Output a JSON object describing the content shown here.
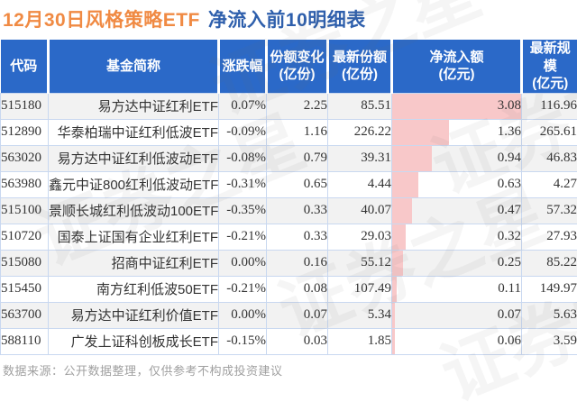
{
  "title": {
    "highlight": "12月30日风格策略ETF",
    "rest": "净流入前10明细表"
  },
  "footer": "数据来源：公开数据整理，仅供参考不构成投资建议",
  "watermark": "证券之星",
  "colors": {
    "header_bg": "#2B69C8",
    "title_orange": "#F08A43",
    "title_blue": "#2E5FAC",
    "positive_red": "#E60000",
    "negative_green": "#00A04A",
    "bar_pink": "#F8C8C9",
    "row_alt_gray": "#F2F2F2",
    "border_blue": "#C9D8F0",
    "footer_gray": "#A0A0A0"
  },
  "chart_data": {
    "type": "table",
    "title": "12月30日风格策略ETF 净流入前10明细表",
    "columns": [
      "代码",
      "基金简称",
      "涨跌幅",
      "份额变化\n(亿份)",
      "最新份额\n(亿份)",
      "净流入额\n(亿元)",
      "最新规模\n(亿元)"
    ],
    "bar_column": "net_inflow",
    "bar_max": 3.08,
    "rows": [
      {
        "code": "515180",
        "name": "易方达中证红利ETF",
        "change": "0.07%",
        "share_change": "2.25",
        "latest_share": "85.51",
        "net_inflow": "3.08",
        "scale": "116.96"
      },
      {
        "code": "512890",
        "name": "华泰柏瑞中证红利低波ETF",
        "change": "-0.09%",
        "share_change": "1.16",
        "latest_share": "226.22",
        "net_inflow": "1.36",
        "scale": "265.61"
      },
      {
        "code": "563020",
        "name": "易方达中证红利低波动ETF",
        "change": "-0.08%",
        "share_change": "0.79",
        "latest_share": "39.31",
        "net_inflow": "0.94",
        "scale": "46.83"
      },
      {
        "code": "563980",
        "name": "鑫元中证800红利低波动ETF",
        "change": "-0.31%",
        "share_change": "0.65",
        "latest_share": "4.44",
        "net_inflow": "0.63",
        "scale": "4.27"
      },
      {
        "code": "515100",
        "name": "景顺长城红利低波动100ETF",
        "change": "-0.35%",
        "share_change": "0.33",
        "latest_share": "40.07",
        "net_inflow": "0.47",
        "scale": "57.32"
      },
      {
        "code": "510720",
        "name": "国泰上证国有企业红利ETF",
        "change": "-0.21%",
        "share_change": "0.33",
        "latest_share": "29.03",
        "net_inflow": "0.32",
        "scale": "27.93"
      },
      {
        "code": "515080",
        "name": "招商中证红利ETF",
        "change": "0.00%",
        "share_change": "0.16",
        "latest_share": "55.12",
        "net_inflow": "0.25",
        "scale": "85.22"
      },
      {
        "code": "515450",
        "name": "南方红利低波50ETF",
        "change": "-0.21%",
        "share_change": "0.08",
        "latest_share": "107.49",
        "net_inflow": "0.11",
        "scale": "149.97"
      },
      {
        "code": "563700",
        "name": "易方达中证红利价值ETF",
        "change": "0.00%",
        "share_change": "0.07",
        "latest_share": "5.34",
        "net_inflow": "0.07",
        "scale": "5.63"
      },
      {
        "code": "588110",
        "name": "广发上证科创板成长ETF",
        "change": "-0.15%",
        "share_change": "0.03",
        "latest_share": "1.85",
        "net_inflow": "0.06",
        "scale": "3.59"
      }
    ]
  }
}
